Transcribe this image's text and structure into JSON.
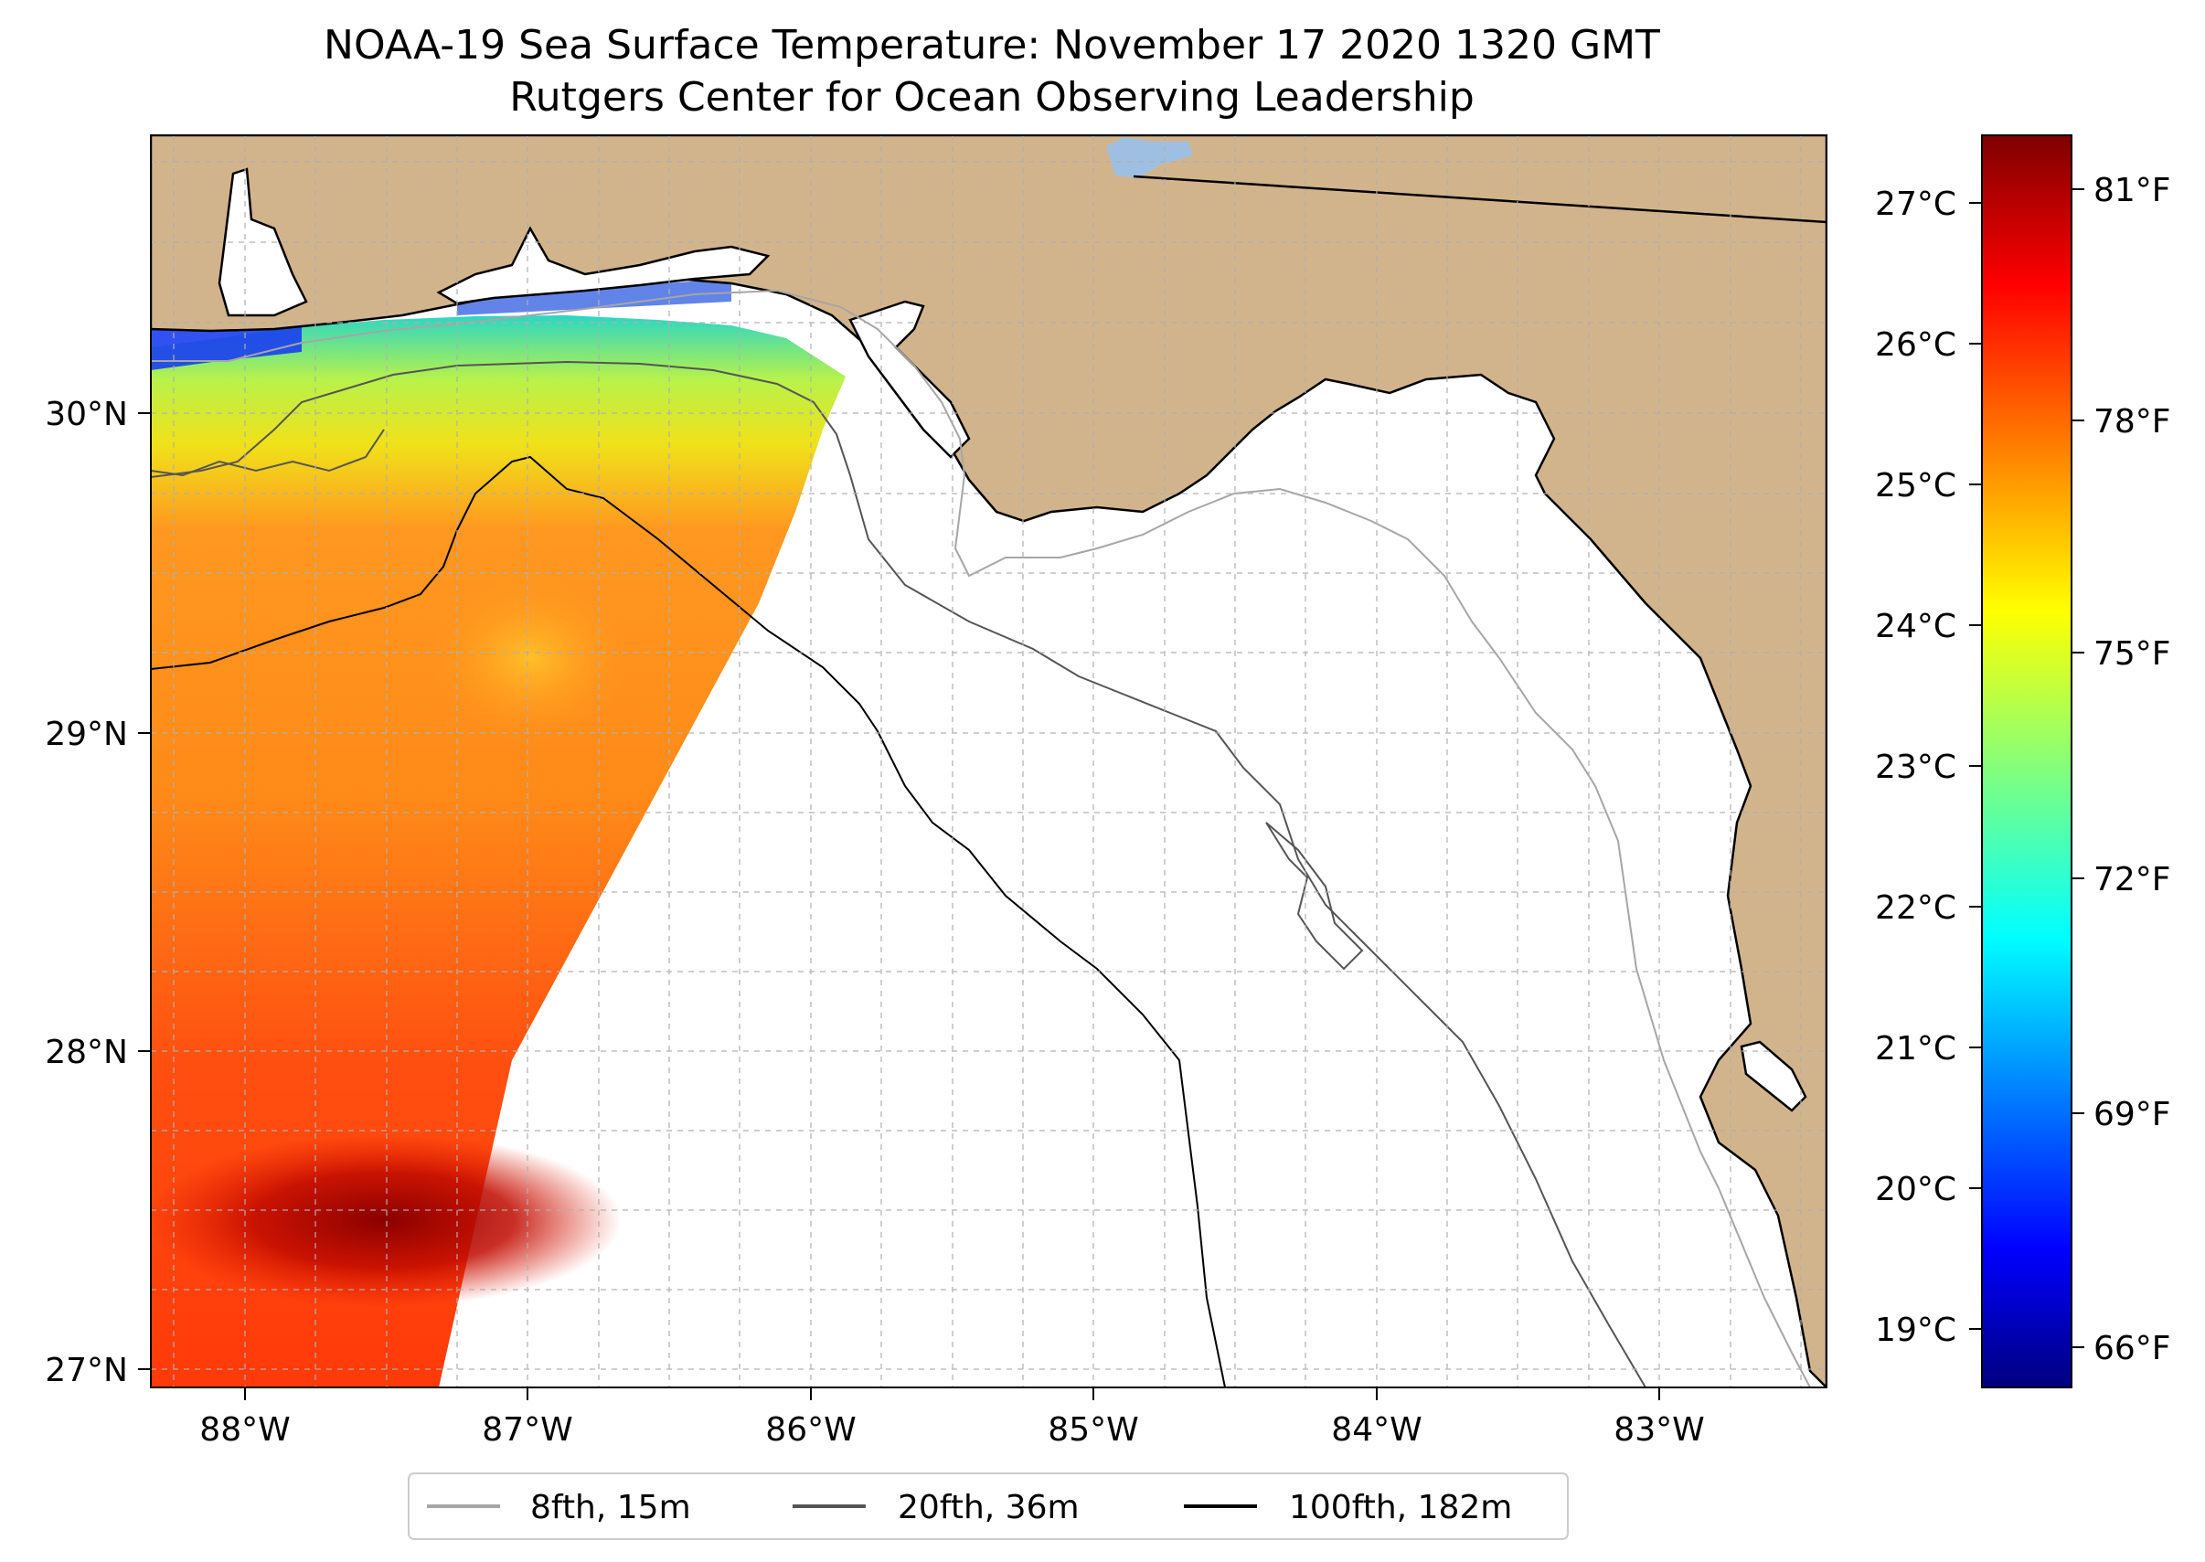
{
  "title": {
    "line1": "NOAA-19 Sea Surface Temperature: November 17 2020 1320 GMT",
    "line2": "Rutgers Center for Ocean Observing Leadership"
  },
  "map": {
    "lon_range": [
      -88.33,
      -82.4
    ],
    "lat_range": [
      26.93,
      30.85
    ],
    "lon_ticks": [
      {
        "value": -88,
        "label": "88°W"
      },
      {
        "value": -87,
        "label": "87°W"
      },
      {
        "value": -86,
        "label": "86°W"
      },
      {
        "value": -85,
        "label": "85°W"
      },
      {
        "value": -84,
        "label": "84°W"
      },
      {
        "value": -83,
        "label": "83°W"
      }
    ],
    "lat_ticks": [
      {
        "value": 30,
        "label": "30°N"
      },
      {
        "value": 29,
        "label": "29°N"
      },
      {
        "value": 28,
        "label": "28°N"
      },
      {
        "value": 27,
        "label": "27°N"
      }
    ],
    "grid": "dashed, every 0.25°",
    "land_color": "#d2b48c",
    "water_color": "#ffffff",
    "lake_color": "#9fbfe2"
  },
  "colorbar": {
    "colormap": "jet",
    "celsius_range": [
      18.6,
      27.5
    ],
    "celsius_ticks": [
      {
        "value": 19,
        "label": "19°C"
      },
      {
        "value": 20,
        "label": "20°C"
      },
      {
        "value": 21,
        "label": "21°C"
      },
      {
        "value": 22,
        "label": "22°C"
      },
      {
        "value": 23,
        "label": "23°C"
      },
      {
        "value": 24,
        "label": "24°C"
      },
      {
        "value": 25,
        "label": "25°C"
      },
      {
        "value": 26,
        "label": "26°C"
      },
      {
        "value": 27,
        "label": "27°C"
      }
    ],
    "fahrenheit_ticks": [
      {
        "value": 66,
        "label": "66°F"
      },
      {
        "value": 69,
        "label": "69°F"
      },
      {
        "value": 72,
        "label": "72°F"
      },
      {
        "value": 75,
        "label": "75°F"
      },
      {
        "value": 78,
        "label": "78°F"
      },
      {
        "value": 81,
        "label": "81°F"
      }
    ]
  },
  "legend": {
    "placement": "bottom-center",
    "items": [
      {
        "label": "8fth, 15m",
        "color": "#a6a6a6"
      },
      {
        "label": "20fth, 36m",
        "color": "#555555"
      },
      {
        "label": "100fth, 182m",
        "color": "#000000"
      }
    ]
  }
}
